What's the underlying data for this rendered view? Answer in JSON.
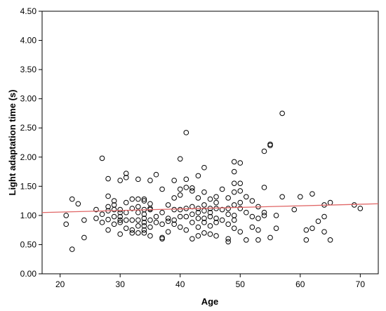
{
  "chart_data": {
    "type": "scatter",
    "xlabel": "Age",
    "ylabel": "Light adaptation time (s)",
    "xlim": [
      17,
      73
    ],
    "ylim": [
      0,
      4.5
    ],
    "x_ticks": [
      20,
      30,
      40,
      50,
      60,
      70
    ],
    "y_ticks": [
      "0.00",
      "0.50",
      "1.00",
      "1.50",
      "2.00",
      "2.50",
      "3.00",
      "3.50",
      "4.00",
      "4.50"
    ],
    "grid": false,
    "colors": {
      "points": "#000000",
      "fit_line": "#e06666",
      "background": "#ffffff"
    },
    "fit_line": {
      "x": [
        17,
        73
      ],
      "y": [
        1.05,
        1.2
      ]
    },
    "points": [
      {
        "x": 21,
        "y": 1.0
      },
      {
        "x": 21,
        "y": 0.85
      },
      {
        "x": 22,
        "y": 1.28
      },
      {
        "x": 22,
        "y": 0.42
      },
      {
        "x": 23,
        "y": 1.2
      },
      {
        "x": 24,
        "y": 0.92
      },
      {
        "x": 24,
        "y": 0.62
      },
      {
        "x": 26,
        "y": 1.1
      },
      {
        "x": 26,
        "y": 0.95
      },
      {
        "x": 27,
        "y": 1.98
      },
      {
        "x": 27,
        "y": 1.02
      },
      {
        "x": 27,
        "y": 0.88
      },
      {
        "x": 28,
        "y": 1.63
      },
      {
        "x": 28,
        "y": 1.33
      },
      {
        "x": 28,
        "y": 1.15
      },
      {
        "x": 28,
        "y": 1.08
      },
      {
        "x": 28,
        "y": 0.93
      },
      {
        "x": 28,
        "y": 0.75
      },
      {
        "x": 29,
        "y": 1.25
      },
      {
        "x": 29,
        "y": 1.18
      },
      {
        "x": 29,
        "y": 1.1
      },
      {
        "x": 29,
        "y": 0.98
      },
      {
        "x": 29,
        "y": 0.85
      },
      {
        "x": 30,
        "y": 1.6
      },
      {
        "x": 30,
        "y": 1.1
      },
      {
        "x": 30,
        "y": 1.05
      },
      {
        "x": 30,
        "y": 0.98
      },
      {
        "x": 30,
        "y": 0.92
      },
      {
        "x": 30,
        "y": 0.88
      },
      {
        "x": 30,
        "y": 0.68
      },
      {
        "x": 31,
        "y": 1.72
      },
      {
        "x": 31,
        "y": 1.65
      },
      {
        "x": 31,
        "y": 1.22
      },
      {
        "x": 31,
        "y": 1.05
      },
      {
        "x": 31,
        "y": 0.92
      },
      {
        "x": 31,
        "y": 0.78
      },
      {
        "x": 32,
        "y": 1.28
      },
      {
        "x": 32,
        "y": 1.12
      },
      {
        "x": 32,
        "y": 0.92
      },
      {
        "x": 32,
        "y": 0.75
      },
      {
        "x": 32,
        "y": 0.7
      },
      {
        "x": 33,
        "y": 1.62
      },
      {
        "x": 33,
        "y": 1.28
      },
      {
        "x": 33,
        "y": 1.15
      },
      {
        "x": 33,
        "y": 1.05
      },
      {
        "x": 33,
        "y": 0.92
      },
      {
        "x": 33,
        "y": 0.82
      },
      {
        "x": 33,
        "y": 0.7
      },
      {
        "x": 34,
        "y": 1.28
      },
      {
        "x": 34,
        "y": 1.25
      },
      {
        "x": 34,
        "y": 1.1
      },
      {
        "x": 34,
        "y": 1.02
      },
      {
        "x": 34,
        "y": 0.95
      },
      {
        "x": 34,
        "y": 0.88
      },
      {
        "x": 34,
        "y": 0.82
      },
      {
        "x": 34,
        "y": 0.75
      },
      {
        "x": 34,
        "y": 0.7
      },
      {
        "x": 35,
        "y": 1.6
      },
      {
        "x": 35,
        "y": 1.2
      },
      {
        "x": 35,
        "y": 1.12
      },
      {
        "x": 35,
        "y": 1.1
      },
      {
        "x": 35,
        "y": 0.92
      },
      {
        "x": 35,
        "y": 0.8
      },
      {
        "x": 35,
        "y": 0.65
      },
      {
        "x": 36,
        "y": 1.7
      },
      {
        "x": 36,
        "y": 0.98
      },
      {
        "x": 36,
        "y": 0.88
      },
      {
        "x": 37,
        "y": 1.45
      },
      {
        "x": 37,
        "y": 1.05
      },
      {
        "x": 37,
        "y": 0.85
      },
      {
        "x": 37,
        "y": 0.62
      },
      {
        "x": 37,
        "y": 0.6
      },
      {
        "x": 38,
        "y": 1.18
      },
      {
        "x": 38,
        "y": 0.95
      },
      {
        "x": 38,
        "y": 0.9
      },
      {
        "x": 38,
        "y": 0.72
      },
      {
        "x": 39,
        "y": 1.6
      },
      {
        "x": 39,
        "y": 1.3
      },
      {
        "x": 39,
        "y": 1.1
      },
      {
        "x": 39,
        "y": 0.92
      },
      {
        "x": 39,
        "y": 0.85
      },
      {
        "x": 40,
        "y": 1.97
      },
      {
        "x": 40,
        "y": 1.45
      },
      {
        "x": 40,
        "y": 1.35
      },
      {
        "x": 40,
        "y": 1.1
      },
      {
        "x": 40,
        "y": 0.98
      },
      {
        "x": 40,
        "y": 0.8
      },
      {
        "x": 41,
        "y": 2.42
      },
      {
        "x": 41,
        "y": 1.62
      },
      {
        "x": 41,
        "y": 1.48
      },
      {
        "x": 41,
        "y": 1.12
      },
      {
        "x": 41,
        "y": 0.98
      },
      {
        "x": 41,
        "y": 0.75
      },
      {
        "x": 42,
        "y": 1.47
      },
      {
        "x": 42,
        "y": 1.42
      },
      {
        "x": 42,
        "y": 1.15
      },
      {
        "x": 42,
        "y": 1.02
      },
      {
        "x": 42,
        "y": 0.88
      },
      {
        "x": 42,
        "y": 0.6
      },
      {
        "x": 43,
        "y": 1.68
      },
      {
        "x": 43,
        "y": 1.3
      },
      {
        "x": 43,
        "y": 1.12
      },
      {
        "x": 43,
        "y": 1.05
      },
      {
        "x": 43,
        "y": 0.95
      },
      {
        "x": 43,
        "y": 0.8
      },
      {
        "x": 43,
        "y": 0.65
      },
      {
        "x": 44,
        "y": 1.82
      },
      {
        "x": 44,
        "y": 1.4
      },
      {
        "x": 44,
        "y": 1.18
      },
      {
        "x": 44,
        "y": 1.08
      },
      {
        "x": 44,
        "y": 0.95
      },
      {
        "x": 44,
        "y": 0.88
      },
      {
        "x": 44,
        "y": 0.7
      },
      {
        "x": 45,
        "y": 1.28
      },
      {
        "x": 45,
        "y": 1.12
      },
      {
        "x": 45,
        "y": 1.05
      },
      {
        "x": 45,
        "y": 0.98
      },
      {
        "x": 45,
        "y": 0.82
      },
      {
        "x": 45,
        "y": 0.68
      },
      {
        "x": 46,
        "y": 1.32
      },
      {
        "x": 46,
        "y": 1.22
      },
      {
        "x": 46,
        "y": 1.12
      },
      {
        "x": 46,
        "y": 0.95
      },
      {
        "x": 46,
        "y": 0.88
      },
      {
        "x": 46,
        "y": 0.65
      },
      {
        "x": 47,
        "y": 1.45
      },
      {
        "x": 47,
        "y": 1.1
      },
      {
        "x": 47,
        "y": 0.92
      },
      {
        "x": 48,
        "y": 1.3
      },
      {
        "x": 48,
        "y": 1.12
      },
      {
        "x": 48,
        "y": 1.02
      },
      {
        "x": 48,
        "y": 0.85
      },
      {
        "x": 48,
        "y": 0.6
      },
      {
        "x": 48,
        "y": 0.55
      },
      {
        "x": 49,
        "y": 1.92
      },
      {
        "x": 49,
        "y": 1.75
      },
      {
        "x": 49,
        "y": 1.55
      },
      {
        "x": 49,
        "y": 1.4
      },
      {
        "x": 49,
        "y": 1.18
      },
      {
        "x": 49,
        "y": 1.0
      },
      {
        "x": 49,
        "y": 0.92
      },
      {
        "x": 49,
        "y": 0.78
      },
      {
        "x": 50,
        "y": 1.9
      },
      {
        "x": 50,
        "y": 1.55
      },
      {
        "x": 50,
        "y": 1.42
      },
      {
        "x": 50,
        "y": 1.22
      },
      {
        "x": 50,
        "y": 1.12
      },
      {
        "x": 50,
        "y": 0.72
      },
      {
        "x": 51,
        "y": 1.32
      },
      {
        "x": 51,
        "y": 1.05
      },
      {
        "x": 51,
        "y": 0.58
      },
      {
        "x": 52,
        "y": 1.25
      },
      {
        "x": 52,
        "y": 0.98
      },
      {
        "x": 52,
        "y": 0.8
      },
      {
        "x": 53,
        "y": 1.15
      },
      {
        "x": 53,
        "y": 0.95
      },
      {
        "x": 53,
        "y": 0.75
      },
      {
        "x": 53,
        "y": 0.58
      },
      {
        "x": 54,
        "y": 2.1
      },
      {
        "x": 54,
        "y": 1.48
      },
      {
        "x": 54,
        "y": 1.05
      },
      {
        "x": 54,
        "y": 1.0
      },
      {
        "x": 55,
        "y": 2.22
      },
      {
        "x": 55,
        "y": 2.2
      },
      {
        "x": 55,
        "y": 0.62
      },
      {
        "x": 56,
        "y": 1.0
      },
      {
        "x": 56,
        "y": 0.78
      },
      {
        "x": 57,
        "y": 2.75
      },
      {
        "x": 57,
        "y": 1.32
      },
      {
        "x": 59,
        "y": 1.1
      },
      {
        "x": 60,
        "y": 1.32
      },
      {
        "x": 61,
        "y": 0.75
      },
      {
        "x": 61,
        "y": 0.58
      },
      {
        "x": 62,
        "y": 1.37
      },
      {
        "x": 62,
        "y": 0.78
      },
      {
        "x": 63,
        "y": 0.9
      },
      {
        "x": 64,
        "y": 1.18
      },
      {
        "x": 64,
        "y": 0.98
      },
      {
        "x": 64,
        "y": 0.72
      },
      {
        "x": 65,
        "y": 1.22
      },
      {
        "x": 65,
        "y": 0.58
      },
      {
        "x": 69,
        "y": 1.18
      },
      {
        "x": 70,
        "y": 1.12
      }
    ]
  }
}
